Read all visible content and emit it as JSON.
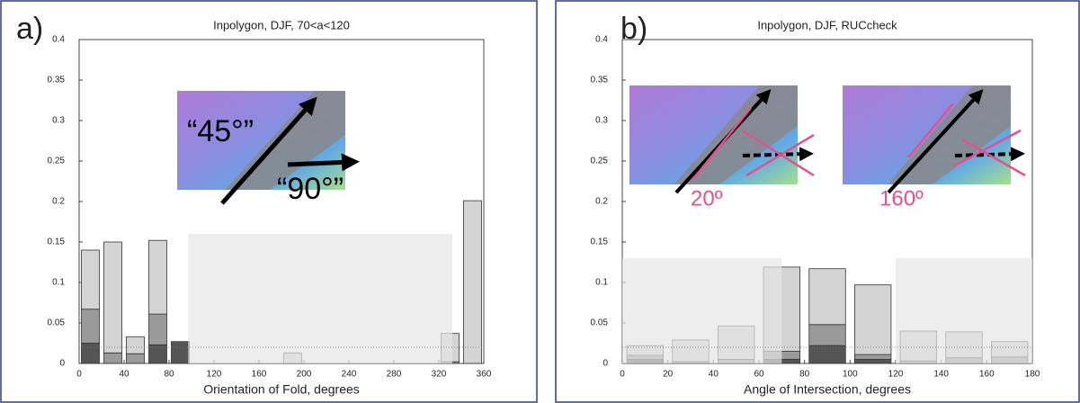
{
  "chart_data": [
    {
      "type": "bar",
      "panel_label": "a)",
      "title": "Inpolygon, DJF, 70<a<120",
      "xlabel": "Orientation of Fold, degrees",
      "x": [
        10,
        30,
        50,
        70,
        90,
        190,
        330,
        350
      ],
      "series": [
        {
          "color": "#555555",
          "values": [
            0.025,
            0,
            0,
            0.023,
            0.027,
            0,
            0,
            0
          ]
        },
        {
          "color": "#9a9a9a",
          "values": [
            0.042,
            0.013,
            0.012,
            0.038,
            0,
            0,
            0.002,
            0
          ]
        },
        {
          "color": "#d4d4d4",
          "values": [
            0.073,
            0.137,
            0.021,
            0.091,
            0,
            0.013,
            0.035,
            0.201
          ]
        }
      ],
      "xlim": [
        0,
        360
      ],
      "xticks": [
        0,
        40,
        80,
        120,
        160,
        200,
        240,
        280,
        320,
        360
      ],
      "ylim": [
        0,
        0.4
      ],
      "yticks": [
        0,
        0.05,
        0.1,
        0.15,
        0.2,
        0.25,
        0.3,
        0.35,
        0.4
      ],
      "reference_y": 0.02,
      "shaded": [
        {
          "x": [
            97,
            332
          ],
          "top": 0.16
        }
      ],
      "annotations": [
        "“45°”",
        "“90°”"
      ]
    },
    {
      "type": "bar",
      "panel_label": "b)",
      "title": "Inpolygon, DJF, RUCcheck",
      "xlabel": "Angle of Intersection, degrees",
      "x": [
        10,
        30,
        50,
        70,
        90,
        110,
        130,
        150,
        170
      ],
      "series": [
        {
          "color": "#555555",
          "values": [
            0.005,
            0,
            0,
            0.005,
            0.022,
            0.005,
            0,
            0,
            0
          ]
        },
        {
          "color": "#9a9a9a",
          "values": [
            0.005,
            0.002,
            0.005,
            0.01,
            0.026,
            0.006,
            0.003,
            0.007,
            0.008
          ]
        },
        {
          "color": "#d4d4d4",
          "values": [
            0.012,
            0.027,
            0.041,
            0.104,
            0.069,
            0.086,
            0.037,
            0.032,
            0.019
          ]
        }
      ],
      "xlim": [
        0,
        180
      ],
      "xticks": [
        0,
        20,
        40,
        60,
        80,
        100,
        120,
        140,
        160,
        180
      ],
      "ylim": [
        0,
        0.4
      ],
      "yticks": [
        0,
        0.05,
        0.1,
        0.15,
        0.2,
        0.25,
        0.3,
        0.35,
        0.4
      ],
      "reference_y": 0.02,
      "shaded": [
        {
          "x": [
            0,
            70
          ],
          "top": 0.13
        },
        {
          "x": [
            120,
            180
          ],
          "top": 0.13
        }
      ],
      "annotations": [
        "20º",
        "160º"
      ]
    }
  ]
}
